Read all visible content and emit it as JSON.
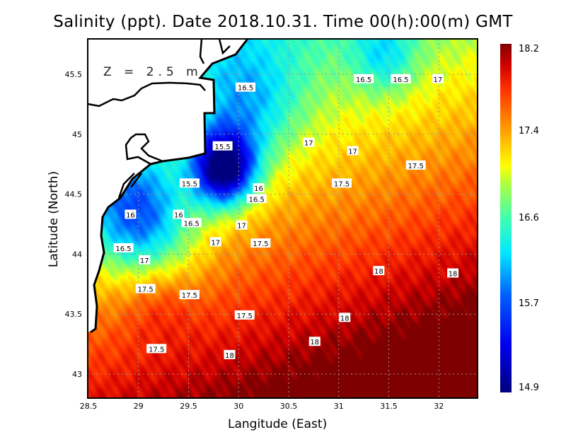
{
  "title": "Salinity (ppt). Date 2018.10.31. Time 00(h):00(m) GMT",
  "depth_label": "Z = 2.5 m",
  "chart_data": {
    "type": "heatmap",
    "title": "Salinity (ppt). Date 2018.10.31. Time 00(h):00(m) GMT",
    "xlabel": "Langitude (East)",
    "ylabel": "Latitude (North)",
    "xlim": [
      28.5,
      32.4
    ],
    "ylim": [
      42.8,
      45.8
    ],
    "x_ticks": [
      "28.5",
      "29",
      "29.5",
      "30",
      "30.5",
      "31",
      "31.5",
      "32"
    ],
    "y_ticks": [
      "43",
      "43.5",
      "44",
      "44.5",
      "45",
      "45.5"
    ],
    "grid": true,
    "colorbar": {
      "min": 14.9,
      "max": 18.2,
      "ticks": [
        "18.2",
        "17.4",
        "16.6",
        "15.7",
        "14.9"
      ],
      "colormap": "jet",
      "placement": "right"
    },
    "contour_labels": [
      {
        "lon": 30.07,
        "lat": 45.39,
        "value": "16.5"
      },
      {
        "lon": 31.25,
        "lat": 45.46,
        "value": "16.5"
      },
      {
        "lon": 31.62,
        "lat": 45.46,
        "value": "16.5"
      },
      {
        "lon": 31.99,
        "lat": 45.46,
        "value": "17"
      },
      {
        "lon": 29.84,
        "lat": 44.9,
        "value": "15.5"
      },
      {
        "lon": 30.7,
        "lat": 44.93,
        "value": "17"
      },
      {
        "lon": 31.14,
        "lat": 44.86,
        "value": "17"
      },
      {
        "lon": 31.77,
        "lat": 44.74,
        "value": "17.5"
      },
      {
        "lon": 29.51,
        "lat": 44.59,
        "value": "15.5"
      },
      {
        "lon": 30.2,
        "lat": 44.55,
        "value": "16"
      },
      {
        "lon": 30.18,
        "lat": 44.46,
        "value": "16.5"
      },
      {
        "lon": 31.03,
        "lat": 44.59,
        "value": "17.5"
      },
      {
        "lon": 28.92,
        "lat": 44.33,
        "value": "16"
      },
      {
        "lon": 29.4,
        "lat": 44.33,
        "value": "16"
      },
      {
        "lon": 29.53,
        "lat": 44.26,
        "value": "16.5"
      },
      {
        "lon": 30.03,
        "lat": 44.24,
        "value": "17"
      },
      {
        "lon": 29.77,
        "lat": 44.1,
        "value": "17"
      },
      {
        "lon": 30.22,
        "lat": 44.09,
        "value": "17.5"
      },
      {
        "lon": 28.85,
        "lat": 44.05,
        "value": "16.5"
      },
      {
        "lon": 29.06,
        "lat": 43.95,
        "value": "17"
      },
      {
        "lon": 31.4,
        "lat": 43.86,
        "value": "18"
      },
      {
        "lon": 32.14,
        "lat": 43.84,
        "value": "18"
      },
      {
        "lon": 29.07,
        "lat": 43.71,
        "value": "17.5"
      },
      {
        "lon": 29.51,
        "lat": 43.66,
        "value": "17.5"
      },
      {
        "lon": 30.06,
        "lat": 43.49,
        "value": "17.5"
      },
      {
        "lon": 31.06,
        "lat": 43.47,
        "value": "18"
      },
      {
        "lon": 30.76,
        "lat": 43.27,
        "value": "18"
      },
      {
        "lon": 29.18,
        "lat": 43.21,
        "value": "17.5"
      },
      {
        "lon": 29.91,
        "lat": 43.16,
        "value": "18"
      }
    ]
  }
}
